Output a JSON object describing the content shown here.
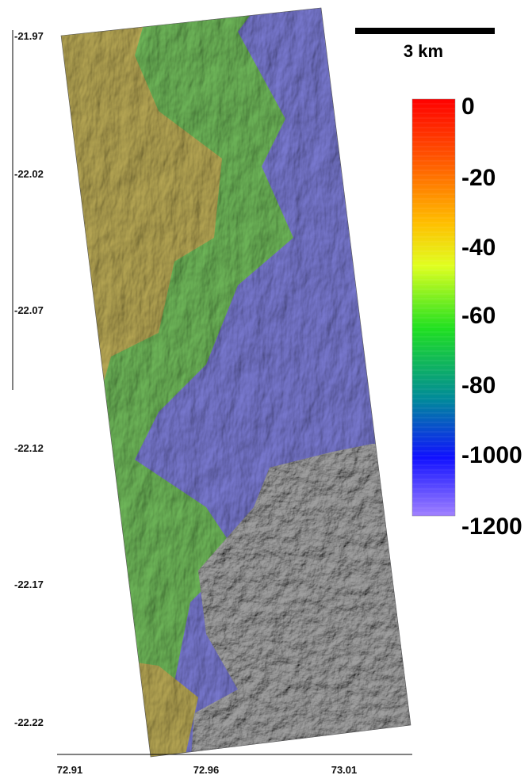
{
  "map": {
    "scale_bar": {
      "label": "3 km"
    },
    "y_axis_ticks": [
      "-21.97",
      "-22.02",
      "-22.07",
      "-22.12",
      "-22.17",
      "-22.22"
    ],
    "x_axis_ticks": [
      "72.91",
      "72.96",
      "73.01"
    ],
    "colorbar": {
      "labels": [
        "0",
        "-20",
        "-40",
        "-60",
        "-80",
        "-1000",
        "-1200"
      ],
      "colors": [
        "#ff0000",
        "#ff8000",
        "#ffff00",
        "#00ff00",
        "#0080a0",
        "#0000ff",
        "#9c70ff"
      ]
    },
    "terrain_colors": {
      "highland": "#b8a855",
      "midland": "#6fb85a",
      "lowland": "#7a7ad2",
      "unmapped": "#9a9a9a"
    }
  }
}
